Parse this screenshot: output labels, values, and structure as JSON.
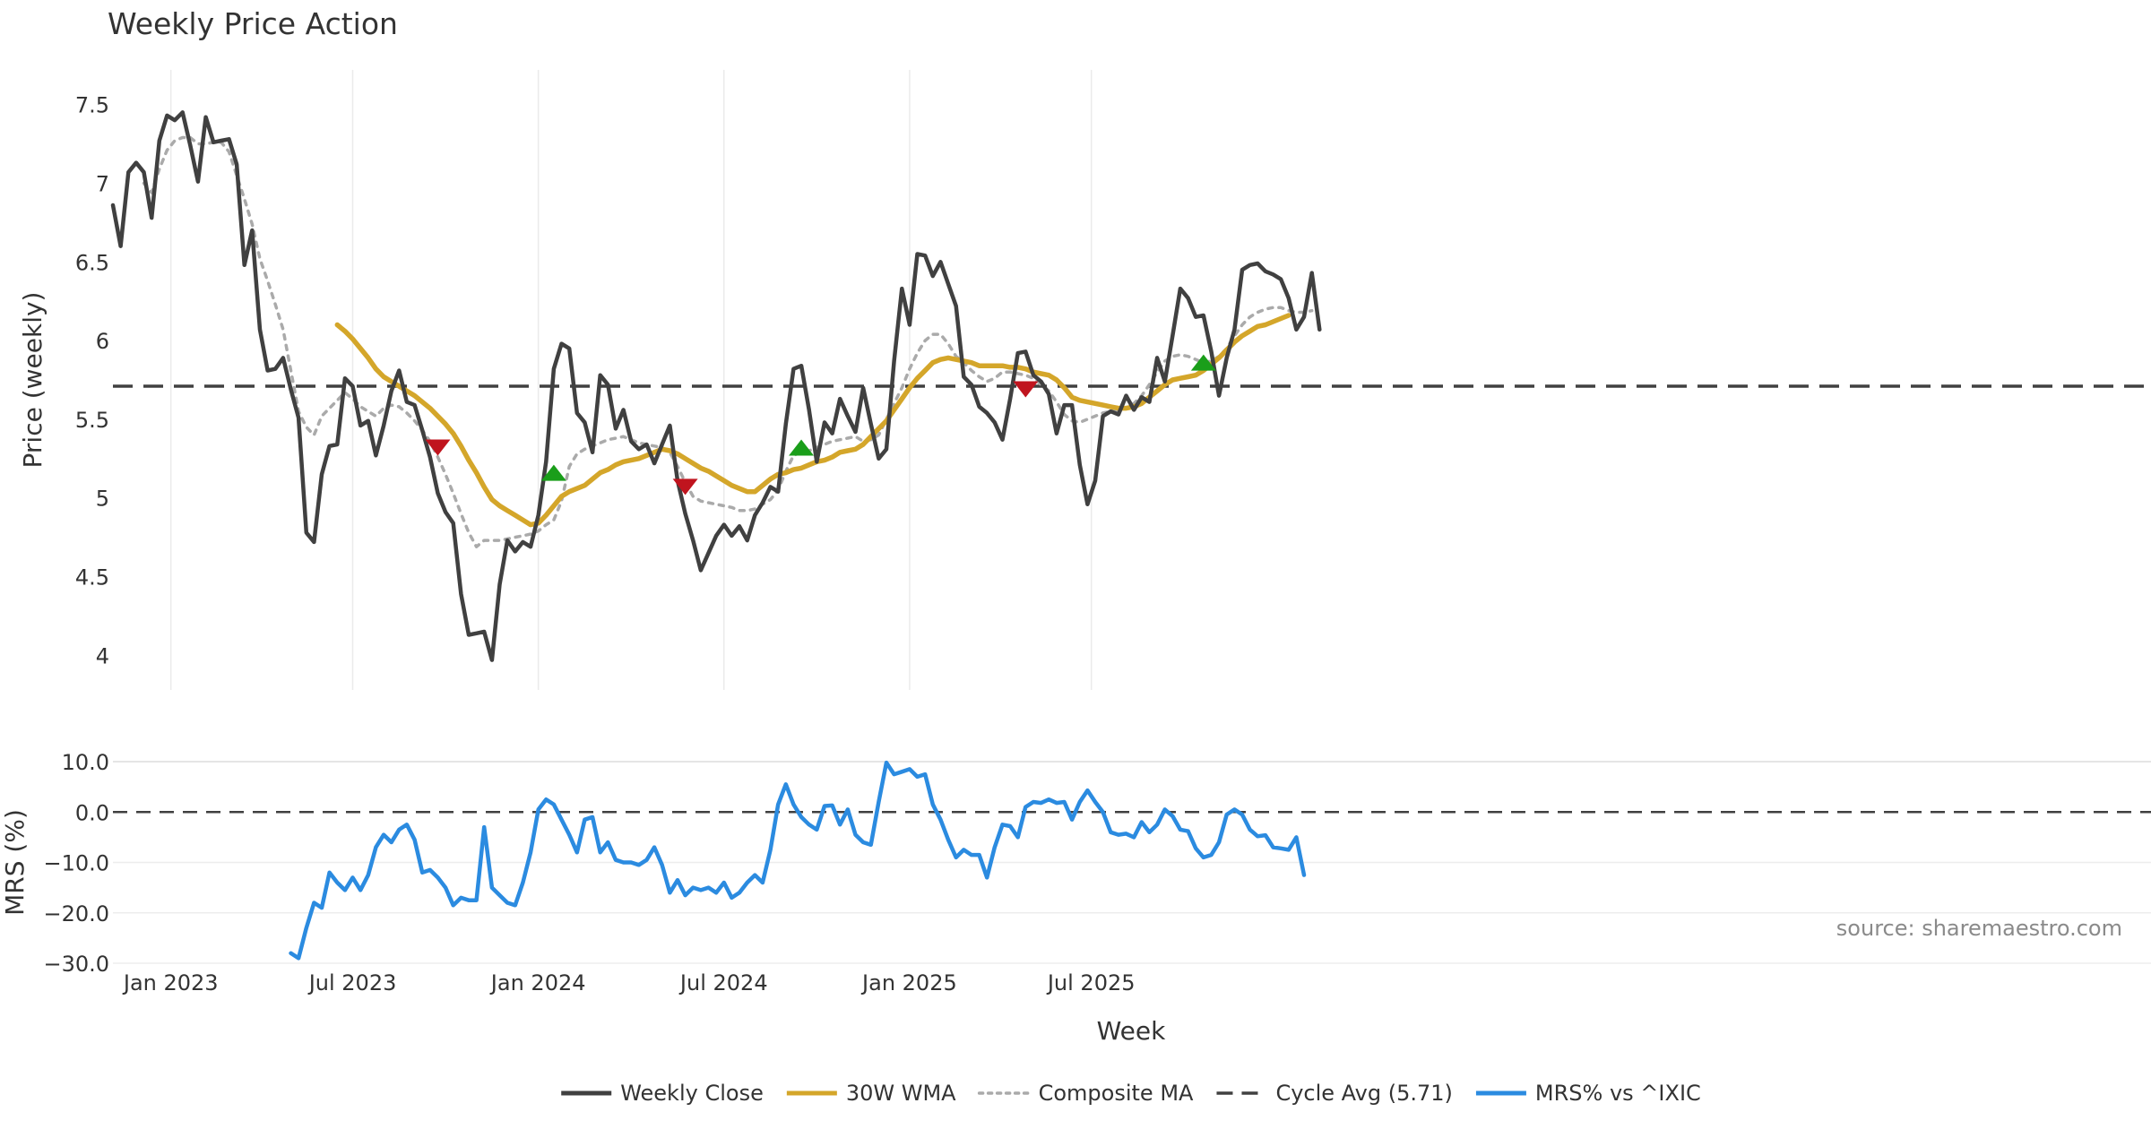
{
  "chart_data": [
    {
      "type": "line",
      "title": "Weekly Price Action",
      "xlabel": "",
      "ylabel": "Price (weekly)",
      "ylim": [
        3.78,
        7.72
      ],
      "yticks": [
        4,
        4.5,
        5,
        5.5,
        6,
        6.5,
        7,
        7.5
      ],
      "ytick_labels": [
        "4",
        "4.5",
        "5",
        "5.5",
        "6",
        "6.5",
        "7",
        "7.5"
      ],
      "x_start": 0,
      "x_step": 1,
      "series": [
        {
          "name": "Weekly Close",
          "color": "#404040",
          "start": 0,
          "values": [
            6.86,
            6.6,
            7.07,
            7.13,
            7.07,
            6.78,
            7.27,
            7.43,
            7.4,
            7.45,
            7.24,
            7.01,
            7.42,
            7.26,
            7.27,
            7.28,
            7.12,
            6.48,
            6.7,
            6.07,
            5.81,
            5.82,
            5.89,
            5.69,
            5.51,
            4.78,
            4.72,
            5.15,
            5.33,
            5.34,
            5.76,
            5.71,
            5.46,
            5.49,
            5.27,
            5.46,
            5.68,
            5.81,
            5.61,
            5.59,
            5.43,
            5.26,
            5.03,
            4.91,
            4.84,
            4.39,
            4.13,
            4.14,
            4.15,
            3.97,
            4.45,
            4.73,
            4.66,
            4.72,
            4.69,
            4.89,
            5.23,
            5.82,
            5.98,
            5.95,
            5.54,
            5.48,
            5.29,
            5.78,
            5.72,
            5.44,
            5.56,
            5.36,
            5.31,
            5.34,
            5.22,
            5.34,
            5.46,
            5.11,
            4.9,
            4.73,
            4.54,
            4.65,
            4.76,
            4.83,
            4.76,
            4.82,
            4.73,
            4.89,
            4.97,
            5.07,
            5.04,
            5.47,
            5.82,
            5.84,
            5.56,
            5.23,
            5.48,
            5.41,
            5.63,
            5.52,
            5.42,
            5.7,
            5.47,
            5.25,
            5.31,
            5.87,
            6.33,
            6.1,
            6.55,
            6.54,
            6.41,
            6.5,
            6.36,
            6.22,
            5.77,
            5.72,
            5.58,
            5.54,
            5.48,
            5.37,
            5.63,
            5.92,
            5.93,
            5.78,
            5.74,
            5.66,
            5.41,
            5.59,
            5.59,
            5.21,
            4.96,
            5.11,
            5.52,
            5.55,
            5.53,
            5.65,
            5.56,
            5.64,
            5.61,
            5.89,
            5.74,
            6.03,
            6.33,
            6.27,
            6.15,
            6.16,
            5.93,
            5.65,
            5.89,
            6.07,
            6.45,
            6.48,
            6.49,
            6.44,
            6.42,
            6.39,
            6.27,
            6.07,
            6.15,
            6.43,
            6.07
          ]
        },
        {
          "name": "30W WMA",
          "color": "#d4a62a",
          "start": 29,
          "values": [
            6.1,
            6.06,
            6.01,
            5.95,
            5.89,
            5.82,
            5.77,
            5.74,
            5.71,
            5.68,
            5.65,
            5.61,
            5.57,
            5.52,
            5.47,
            5.41,
            5.33,
            5.24,
            5.16,
            5.07,
            4.99,
            4.95,
            4.92,
            4.89,
            4.86,
            4.83,
            4.84,
            4.89,
            4.95,
            5.01,
            5.04,
            5.06,
            5.08,
            5.12,
            5.16,
            5.18,
            5.21,
            5.23,
            5.24,
            5.25,
            5.27,
            5.29,
            5.31,
            5.3,
            5.28,
            5.25,
            5.22,
            5.19,
            5.17,
            5.14,
            5.11,
            5.08,
            5.06,
            5.04,
            5.04,
            5.08,
            5.12,
            5.15,
            5.16,
            5.18,
            5.19,
            5.21,
            5.23,
            5.24,
            5.26,
            5.29,
            5.3,
            5.31,
            5.34,
            5.39,
            5.44,
            5.49,
            5.56,
            5.63,
            5.7,
            5.76,
            5.81,
            5.86,
            5.88,
            5.89,
            5.88,
            5.87,
            5.86,
            5.84,
            5.84,
            5.84,
            5.84,
            5.83,
            5.83,
            5.82,
            5.8,
            5.79,
            5.78,
            5.75,
            5.7,
            5.64,
            5.62,
            5.61,
            5.6,
            5.59,
            5.58,
            5.57,
            5.57,
            5.58,
            5.6,
            5.64,
            5.68,
            5.72,
            5.75,
            5.76,
            5.77,
            5.78,
            5.81,
            5.85,
            5.89,
            5.94,
            5.99,
            6.03,
            6.06,
            6.09,
            6.1,
            6.12,
            6.14,
            6.16
          ]
        },
        {
          "name": "Composite MA",
          "color": "#aaaaaa",
          "start": 4,
          "values": [
            7.0,
            6.94,
            7.09,
            7.21,
            7.27,
            7.29,
            7.29,
            7.25,
            7.25,
            7.26,
            7.26,
            7.2,
            7.05,
            6.9,
            6.74,
            6.52,
            6.38,
            6.23,
            6.07,
            5.81,
            5.55,
            5.45,
            5.4,
            5.52,
            5.57,
            5.62,
            5.67,
            5.63,
            5.58,
            5.55,
            5.52,
            5.57,
            5.59,
            5.58,
            5.54,
            5.49,
            5.43,
            5.36,
            5.26,
            5.15,
            5.03,
            4.9,
            4.78,
            4.69,
            4.73,
            4.73,
            4.73,
            4.74,
            4.75,
            4.76,
            4.77,
            4.79,
            4.83,
            4.86,
            4.98,
            5.2,
            5.28,
            5.31,
            5.33,
            5.35,
            5.37,
            5.38,
            5.39,
            5.37,
            5.35,
            5.34,
            5.33,
            5.32,
            5.29,
            5.2,
            5.1,
            5.01,
            4.98,
            4.97,
            4.96,
            4.95,
            4.94,
            4.92,
            4.92,
            4.93,
            4.96,
            4.99,
            5.05,
            5.17,
            5.27,
            5.29,
            5.3,
            5.32,
            5.34,
            5.36,
            5.37,
            5.38,
            5.39,
            5.36,
            5.37,
            5.4,
            5.5,
            5.6,
            5.7,
            5.82,
            5.92,
            6.0,
            6.04,
            6.04,
            5.98,
            5.9,
            5.86,
            5.81,
            5.77,
            5.74,
            5.76,
            5.8,
            5.8,
            5.79,
            5.78,
            5.76,
            5.72,
            5.68,
            5.61,
            5.53,
            5.49,
            5.48,
            5.5,
            5.52,
            5.54,
            5.55,
            5.56,
            5.57,
            5.6,
            5.65,
            5.72,
            5.8,
            5.87,
            5.9,
            5.91,
            5.9,
            5.88,
            5.86,
            5.87,
            5.9,
            5.95,
            6.03,
            6.1,
            6.15,
            6.18,
            6.2,
            6.21,
            6.21,
            6.19,
            6.18,
            6.18,
            6.19
          ]
        }
      ],
      "reference_lines": [
        {
          "name": "Cycle Avg (5.71)",
          "value": 5.71,
          "color": "#404040",
          "style": "dashed"
        }
      ],
      "markers": [
        {
          "type": "sell",
          "x": 42,
          "y": 5.32,
          "color": "#c0141e"
        },
        {
          "type": "buy",
          "x": 57,
          "y": 5.16,
          "color": "#1a9e1a"
        },
        {
          "type": "sell",
          "x": 74,
          "y": 5.07,
          "color": "#c0141e"
        },
        {
          "type": "buy",
          "x": 89,
          "y": 5.32,
          "color": "#1a9e1a"
        },
        {
          "type": "sell",
          "x": 118,
          "y": 5.69,
          "color": "#c0141e"
        },
        {
          "type": "buy",
          "x": 141,
          "y": 5.86,
          "color": "#1a9e1a"
        }
      ]
    },
    {
      "type": "line",
      "title": "",
      "xlabel": "Week",
      "ylabel": "MRS (%)",
      "ylim": [
        -30,
        10
      ],
      "yticks": [
        10,
        0,
        -10,
        -20,
        -30
      ],
      "ytick_labels": [
        "10.0",
        "0.0",
        "−10.0",
        "−20.0",
        "−30.0"
      ],
      "x_start": 0,
      "x_step": 1,
      "xticks": [
        7.5,
        31,
        55,
        79,
        103,
        126.5
      ],
      "xtick_labels": [
        "Jan 2023",
        "Jul 2023",
        "Jan 2024",
        "Jul 2024",
        "Jan 2025",
        "Jul 2025"
      ],
      "series": [
        {
          "name": "MRS% vs ^IXIC",
          "color": "#2b8be0",
          "start": 23,
          "values": [
            -28,
            -29,
            -23,
            -18,
            -19,
            -12,
            -14,
            -15.5,
            -13,
            -15.5,
            -12.5,
            -7,
            -4.5,
            -6,
            -3.5,
            -2.5,
            -5.5,
            -12,
            -11.5,
            -13,
            -15,
            -18.5,
            -17,
            -17.5,
            -17.5,
            -3,
            -15,
            -16.5,
            -18,
            -18.5,
            -14,
            -8,
            0.5,
            2.5,
            1.5,
            -1.5,
            -4.5,
            -8,
            -1.5,
            -1,
            -8,
            -6,
            -9.5,
            -10,
            -10,
            -10.5,
            -9.5,
            -7,
            -10.5,
            -16,
            -13.5,
            -16.5,
            -15,
            -15.5,
            -15,
            -16,
            -14,
            -17,
            -16,
            -14,
            -12.5,
            -14,
            -7.5,
            1.5,
            5.5,
            1.5,
            -1,
            -2.5,
            -3.5,
            1.2,
            1.3,
            -2.5,
            0.5,
            -4.5,
            -6,
            -6.5,
            2,
            9.8,
            7.5,
            8,
            8.5,
            7,
            7.5,
            1.5,
            -1.5,
            -5.5,
            -9,
            -7.5,
            -8.5,
            -8.5,
            -13,
            -7,
            -2.5,
            -2.8,
            -5,
            1,
            2,
            1.8,
            2.5,
            1.8,
            2,
            -1.5,
            2,
            4.3,
            2,
            0,
            -4,
            -4.5,
            -4.3,
            -5,
            -2,
            -4,
            -2.5,
            0.5,
            -0.8,
            -3.5,
            -3.8,
            -7.2,
            -9,
            -8.5,
            -6,
            -0.5,
            0.5,
            -0.5,
            -3.5,
            -4.8,
            -4.6,
            -7,
            -7.2,
            -7.5,
            -5,
            -12.5
          ]
        }
      ],
      "reference_lines": [
        {
          "name": "zero",
          "value": 0,
          "color": "#404040",
          "style": "dashed"
        }
      ],
      "annotations": [
        "source: sharemaestro.com"
      ]
    }
  ],
  "legend": {
    "placement": "bottom-center",
    "items": [
      {
        "label": "Weekly Close",
        "color": "#404040",
        "style": "solid"
      },
      {
        "label": "30W WMA",
        "color": "#d4a62a",
        "style": "solid"
      },
      {
        "label": "Composite MA",
        "color": "#aaaaaa",
        "style": "dotted"
      },
      {
        "label": "Cycle Avg (5.71)",
        "color": "#404040",
        "style": "dashed"
      },
      {
        "label": "MRS% vs ^IXIC",
        "color": "#2b8be0",
        "style": "solid"
      }
    ]
  }
}
